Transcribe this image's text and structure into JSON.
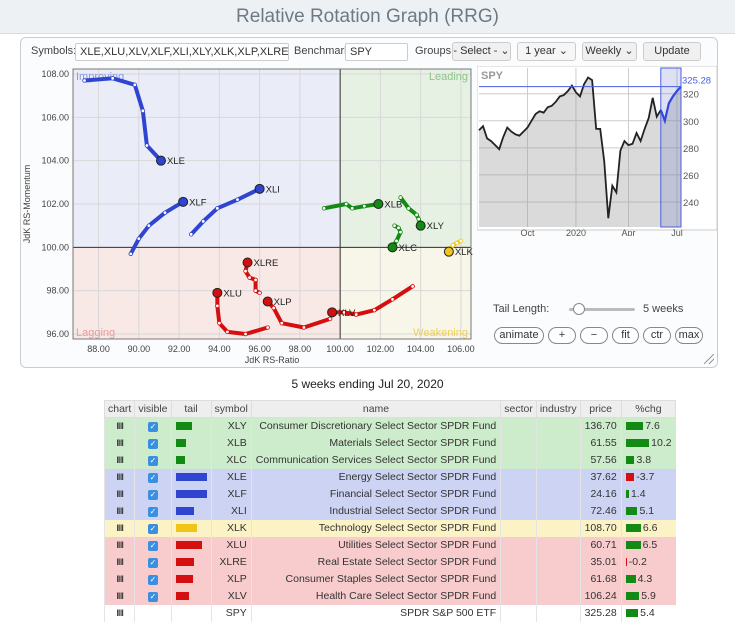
{
  "title": "Relative Rotation Graph (RRG)",
  "controls": {
    "symbols_label": "Symbols:",
    "symbols_value": "XLE,XLU,XLV,XLF,XLI,XLY,XLK,XLP,XLRE,XLC,XI",
    "benchmark_label": "Benchmark:",
    "benchmark_value": "SPY",
    "groups_label": "Groups:",
    "groups_value": "- Select - ⌄",
    "period_value": "1 year ⌄",
    "frequency_value": "Weekly ⌄",
    "update_label": "Update"
  },
  "rrg": {
    "quadrants": {
      "improving": "Improving",
      "leading": "Leading",
      "lagging": "Lagging",
      "weakening": "Weakening"
    },
    "xlabel": "JdK RS-Ratio",
    "ylabel": "JdK RS-Momentum",
    "x_ticks": [
      "88.00",
      "90.00",
      "92.00",
      "94.00",
      "96.00",
      "98.00",
      "100.00",
      "102.00",
      "104.00",
      "106.00"
    ],
    "y_ticks": [
      "96.00",
      "98.00",
      "100.00",
      "102.00",
      "104.00",
      "106.00",
      "108.00"
    ],
    "xlim": [
      86.73,
      106.5
    ],
    "ylim": [
      95.77,
      108.23
    ],
    "colors": {
      "improving": "#2f45d0",
      "leading": "#138a13",
      "lagging": "#d40f0f",
      "weakening": "#f0c419"
    },
    "series": [
      {
        "symbol": "XLE",
        "quadrant": "improving",
        "tail": [
          [
            87.3,
            107.7
          ],
          [
            88.7,
            107.8
          ],
          [
            89.8,
            107.5
          ],
          [
            90.2,
            106.3
          ],
          [
            90.4,
            104.7
          ],
          [
            91.1,
            104.0
          ]
        ]
      },
      {
        "symbol": "XLF",
        "quadrant": "improving",
        "tail": [
          [
            89.6,
            99.7
          ],
          [
            90.0,
            100.4
          ],
          [
            90.5,
            101.0
          ],
          [
            91.3,
            101.6
          ],
          [
            92.2,
            102.1
          ]
        ]
      },
      {
        "symbol": "XLI",
        "quadrant": "improving",
        "tail": [
          [
            92.6,
            100.6
          ],
          [
            93.2,
            101.2
          ],
          [
            93.9,
            101.8
          ],
          [
            94.9,
            102.2
          ],
          [
            96.0,
            102.7
          ]
        ]
      },
      {
        "symbol": "XLB",
        "quadrant": "leading",
        "tail": [
          [
            99.2,
            101.8
          ],
          [
            100.3,
            102.0
          ],
          [
            100.6,
            101.8
          ],
          [
            101.2,
            101.9
          ],
          [
            101.9,
            102.0
          ]
        ]
      },
      {
        "symbol": "XLY",
        "quadrant": "leading",
        "tail": [
          [
            103.0,
            102.3
          ],
          [
            103.4,
            101.8
          ],
          [
            103.8,
            101.5
          ],
          [
            103.9,
            101.3
          ],
          [
            104.0,
            101.0
          ]
        ]
      },
      {
        "symbol": "XLC",
        "quadrant": "leading",
        "tail": [
          [
            102.7,
            101.0
          ],
          [
            102.9,
            100.9
          ],
          [
            103.0,
            100.7
          ],
          [
            102.8,
            100.3
          ],
          [
            102.6,
            100.0
          ]
        ]
      },
      {
        "symbol": "XLK",
        "quadrant": "weakening",
        "tail": [
          [
            106.0,
            100.3
          ],
          [
            105.8,
            100.2
          ],
          [
            105.6,
            100.1
          ],
          [
            105.4,
            99.8
          ]
        ]
      },
      {
        "symbol": "XLRE",
        "quadrant": "lagging",
        "tail": [
          [
            96.0,
            97.9
          ],
          [
            95.8,
            98.0
          ],
          [
            95.8,
            98.5
          ],
          [
            95.5,
            98.6
          ],
          [
            95.3,
            98.9
          ],
          [
            95.4,
            99.3
          ]
        ]
      },
      {
        "symbol": "XLU",
        "quadrant": "lagging",
        "tail": [
          [
            96.4,
            96.3
          ],
          [
            95.3,
            96.0
          ],
          [
            94.4,
            96.1
          ],
          [
            94.0,
            96.5
          ],
          [
            93.9,
            97.3
          ],
          [
            93.9,
            97.9
          ]
        ]
      },
      {
        "symbol": "XLP",
        "quadrant": "lagging",
        "tail": [
          [
            99.5,
            96.7
          ],
          [
            98.2,
            96.3
          ],
          [
            97.1,
            96.5
          ],
          [
            96.7,
            97.2
          ],
          [
            96.4,
            97.5
          ]
        ]
      },
      {
        "symbol": "XLV",
        "quadrant": "lagging",
        "tail": [
          [
            103.6,
            98.2
          ],
          [
            102.6,
            97.6
          ],
          [
            101.7,
            97.1
          ],
          [
            100.8,
            96.9
          ],
          [
            100.2,
            97.0
          ],
          [
            99.6,
            97.0
          ]
        ]
      }
    ]
  },
  "benchmark_chart": {
    "symbol": "SPY",
    "last_value": "325.28",
    "y_ticks": [
      "240",
      "260",
      "280",
      "300",
      "320"
    ],
    "x_ticks": [
      "Oct",
      "2020",
      "Apr",
      "Jul"
    ],
    "ylim": [
      221.5,
      339
    ],
    "prices": [
      293,
      296,
      287,
      285,
      282,
      279,
      288,
      295,
      292,
      290,
      289,
      292,
      295,
      300,
      305,
      307,
      306,
      310,
      311,
      314,
      318,
      319,
      322,
      326,
      321,
      318,
      327,
      332,
      330,
      294,
      294,
      270,
      228,
      252,
      247,
      278,
      285,
      282,
      283,
      291,
      285,
      294,
      302,
      317,
      303,
      308,
      300,
      313,
      318,
      322,
      325.28
    ],
    "highlight_weeks": 5
  },
  "tail_control": {
    "label": "Tail Length:",
    "value": "5 weeks",
    "fraction": 0.15
  },
  "buttons": [
    "animate",
    "+",
    "−",
    "fit",
    "ctr",
    "max"
  ],
  "ending": "5 weeks ending Jul 20, 2020",
  "table": {
    "headers": [
      "chart",
      "visible",
      "tail",
      "symbol",
      "name",
      "sector",
      "industry",
      "price",
      "%chg"
    ],
    "row_colors": {
      "leading": "#cdeccb",
      "improving": "#ccd3f3",
      "weakening": "#fbf2c6",
      "lagging": "#f8cccc",
      "none": "#ffffff"
    },
    "rows": [
      {
        "symbol": "XLY",
        "name": "Consumer Discretionary Select Sector SPDR Fund",
        "price": "136.70",
        "chg": "7.6",
        "quadrant": "leading",
        "tail": 0.52
      },
      {
        "symbol": "XLB",
        "name": "Materials Select Sector SPDR Fund",
        "price": "61.55",
        "chg": "10.2",
        "quadrant": "leading",
        "tail": 0.35
      },
      {
        "symbol": "XLC",
        "name": "Communication Services Select Sector SPDR Fund",
        "price": "57.56",
        "chg": "3.8",
        "quadrant": "leading",
        "tail": 0.32
      },
      {
        "symbol": "XLE",
        "name": "Energy Select Sector SPDR Fund",
        "price": "37.62",
        "chg": "-3.7",
        "quadrant": "improving",
        "tail": 1.0
      },
      {
        "symbol": "XLF",
        "name": "Financial Select Sector SPDR Fund",
        "price": "24.16",
        "chg": "1.4",
        "quadrant": "improving",
        "tail": 1.0
      },
      {
        "symbol": "XLI",
        "name": "Industrial Select Sector SPDR Fund",
        "price": "72.46",
        "chg": "5.1",
        "quadrant": "improving",
        "tail": 0.61
      },
      {
        "symbol": "XLK",
        "name": "Technology Select Sector SPDR Fund",
        "price": "108.70",
        "chg": "6.6",
        "quadrant": "weakening",
        "tail": 0.68
      },
      {
        "symbol": "XLU",
        "name": "Utilities Select Sector SPDR Fund",
        "price": "60.71",
        "chg": "6.5",
        "quadrant": "lagging",
        "tail": 0.84
      },
      {
        "symbol": "XLRE",
        "name": "Real Estate Select Sector SPDR Fund",
        "price": "35.01",
        "chg": "-0.2",
        "quadrant": "lagging",
        "tail": 0.58
      },
      {
        "symbol": "XLP",
        "name": "Consumer Staples Select Sector SPDR Fund",
        "price": "61.68",
        "chg": "4.3",
        "quadrant": "lagging",
        "tail": 0.55
      },
      {
        "symbol": "XLV",
        "name": "Health Care Select Sector SPDR Fund",
        "price": "106.24",
        "chg": "5.9",
        "quadrant": "lagging",
        "tail": 0.42
      },
      {
        "symbol": "SPY",
        "name": "SPDR S&P 500 ETF",
        "price": "325.28",
        "chg": "5.4",
        "quadrant": "none",
        "tail": 0
      }
    ]
  }
}
